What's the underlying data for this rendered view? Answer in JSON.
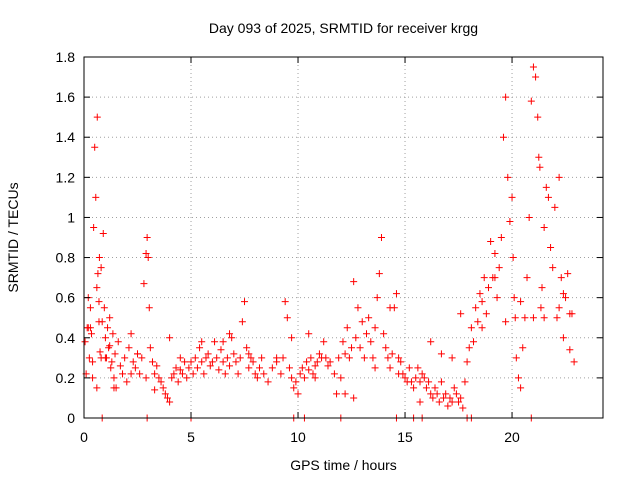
{
  "chart_data": {
    "type": "scatter",
    "title": "Day 093 of 2025, SRMTID for receiver krgg",
    "xlabel": "GPS time / hours",
    "ylabel": "SRMTID / TECUs",
    "xlim": [
      0,
      24.25
    ],
    "ylim": [
      0,
      1.8
    ],
    "x_ticks": [
      0,
      5,
      10,
      15,
      20
    ],
    "x_tick_labels": [
      "0",
      "5",
      "10",
      "15",
      "20"
    ],
    "y_ticks": [
      0,
      0.2,
      0.4,
      0.6,
      0.8,
      1,
      1.2,
      1.4,
      1.6,
      1.8
    ],
    "y_tick_labels": [
      "0",
      "0.2",
      "0.4",
      "0.6",
      "0.8",
      "1",
      "1.2",
      "1.4",
      "1.6",
      "1.8"
    ],
    "grid": true,
    "marker": "plus",
    "colors": {
      "series": "#ff0000",
      "grid": "#a0a0a0",
      "axis": "#000000"
    },
    "series": [
      {
        "name": "SRMTID",
        "x": [
          0.05,
          0.1,
          0.15,
          0.2,
          0.25,
          0.3,
          0.35,
          0.4,
          0.45,
          0.5,
          0.55,
          0.6,
          0.62,
          0.65,
          0.7,
          0.72,
          0.75,
          0.8,
          0.85,
          0.9,
          0.95,
          1.0,
          1.05,
          1.1,
          1.15,
          1.2,
          1.25,
          1.3,
          1.35,
          1.4,
          1.45,
          1.5,
          1.6,
          1.7,
          1.8,
          1.9,
          2.0,
          2.1,
          2.2,
          2.3,
          2.4,
          2.5,
          2.6,
          2.7,
          2.8,
          2.9,
          2.95,
          3.0,
          3.05,
          3.1,
          3.2,
          3.3,
          3.4,
          3.5,
          3.6,
          3.7,
          3.8,
          3.9,
          4.0,
          4.1,
          4.2,
          4.3,
          4.4,
          4.5,
          4.6,
          4.7,
          4.8,
          4.9,
          5.0,
          5.1,
          5.2,
          5.3,
          5.4,
          5.5,
          5.6,
          5.7,
          5.8,
          5.9,
          6.0,
          6.1,
          6.2,
          6.3,
          6.4,
          6.5,
          6.6,
          6.7,
          6.8,
          6.9,
          7.0,
          7.1,
          7.2,
          7.3,
          7.4,
          7.5,
          7.6,
          7.7,
          7.8,
          7.9,
          8.0,
          8.1,
          8.2,
          8.4,
          8.6,
          8.8,
          9.0,
          9.2,
          9.3,
          9.4,
          9.5,
          9.6,
          9.7,
          9.8,
          9.9,
          10.0,
          10.1,
          10.2,
          10.3,
          10.4,
          10.5,
          10.6,
          10.7,
          10.8,
          10.9,
          11.0,
          11.1,
          11.2,
          11.3,
          11.4,
          11.5,
          11.7,
          11.9,
          12.0,
          12.1,
          12.2,
          12.3,
          12.4,
          12.5,
          12.6,
          12.7,
          12.8,
          12.9,
          13.0,
          13.1,
          13.2,
          13.3,
          13.4,
          13.5,
          13.6,
          13.7,
          13.8,
          13.9,
          14.0,
          14.1,
          14.2,
          14.3,
          14.4,
          14.5,
          14.6,
          14.7,
          14.8,
          14.9,
          15.0,
          15.1,
          15.2,
          15.3,
          15.4,
          15.5,
          15.6,
          15.7,
          15.8,
          15.9,
          16.0,
          16.1,
          16.2,
          16.3,
          16.4,
          16.5,
          16.6,
          16.7,
          16.8,
          16.9,
          17.0,
          17.1,
          17.2,
          17.3,
          17.4,
          17.5,
          17.6,
          17.7,
          17.8,
          17.9,
          18.0,
          18.1,
          18.2,
          18.3,
          18.4,
          18.5,
          18.6,
          18.7,
          18.8,
          18.9,
          19.0,
          19.1,
          19.2,
          19.3,
          19.4,
          19.5,
          19.6,
          19.7,
          19.8,
          19.9,
          20.0,
          20.05,
          20.1,
          20.15,
          20.2,
          20.3,
          20.4,
          20.5,
          20.6,
          20.7,
          20.8,
          20.9,
          21.0,
          21.1,
          21.2,
          21.25,
          21.3,
          21.35,
          21.4,
          21.5,
          21.6,
          21.7,
          21.8,
          21.9,
          22.0,
          22.1,
          22.2,
          22.3,
          22.4,
          22.5,
          22.6,
          22.7,
          22.8,
          22.9,
          0.3,
          0.7,
          1.2,
          2.5,
          4.0,
          6.5,
          8.3,
          9.7,
          10.5,
          12.2,
          14.3,
          16.2,
          17.6,
          19.7,
          21.0,
          22.2,
          0.2,
          0.4,
          0.6,
          0.8,
          1.0,
          1.4,
          2.2,
          2.9,
          3.3,
          4.5,
          5.5,
          6.8,
          7.7,
          9.0,
          10.8,
          11.8,
          12.6,
          13.6,
          14.7,
          15.7,
          16.7,
          17.2,
          18.6,
          19.2,
          20.4,
          21.5,
          22.4,
          22.7,
          0.85,
          2.95,
          5.0,
          9.8,
          10.3,
          12.0,
          14.6,
          15.4,
          15.8,
          17.9,
          18.1,
          20.9
        ],
        "y": [
          0.38,
          0.22,
          0.45,
          0.6,
          0.3,
          0.55,
          0.42,
          0.28,
          0.95,
          1.35,
          1.1,
          0.65,
          1.5,
          0.72,
          0.58,
          0.8,
          0.33,
          0.75,
          0.48,
          0.92,
          0.55,
          0.4,
          0.3,
          0.45,
          0.35,
          0.5,
          0.25,
          0.28,
          0.42,
          0.2,
          0.32,
          0.15,
          0.38,
          0.26,
          0.22,
          0.3,
          0.18,
          0.35,
          0.42,
          0.28,
          0.25,
          0.32,
          0.22,
          0.3,
          0.67,
          0.82,
          0.9,
          0.8,
          0.55,
          0.35,
          0.28,
          0.22,
          0.26,
          0.2,
          0.18,
          0.15,
          0.12,
          0.1,
          0.08,
          0.2,
          0.22,
          0.25,
          0.18,
          0.3,
          0.22,
          0.28,
          0.2,
          0.25,
          0.28,
          0.22,
          0.3,
          0.25,
          0.35,
          0.28,
          0.22,
          0.3,
          0.32,
          0.26,
          0.28,
          0.38,
          0.3,
          0.24,
          0.34,
          0.28,
          0.22,
          0.3,
          0.26,
          0.4,
          0.32,
          0.28,
          0.22,
          0.3,
          0.48,
          0.58,
          0.35,
          0.25,
          0.3,
          0.28,
          0.22,
          0.2,
          0.25,
          0.22,
          0.18,
          0.25,
          0.28,
          0.22,
          0.3,
          0.58,
          0.5,
          0.25,
          0.2,
          0.15,
          0.18,
          0.12,
          0.22,
          0.25,
          0.2,
          0.28,
          0.24,
          0.3,
          0.22,
          0.26,
          0.28,
          0.32,
          0.3,
          0.38,
          0.3,
          0.26,
          0.28,
          0.22,
          0.3,
          0.2,
          0.38,
          0.32,
          0.45,
          0.3,
          0.35,
          0.68,
          0.4,
          0.55,
          0.35,
          0.48,
          0.3,
          0.42,
          0.5,
          0.38,
          0.3,
          0.45,
          0.6,
          0.72,
          0.9,
          0.42,
          0.35,
          0.3,
          0.25,
          0.32,
          0.55,
          0.62,
          0.3,
          0.28,
          0.22,
          0.2,
          0.18,
          0.25,
          0.18,
          0.15,
          0.2,
          0.25,
          0.18,
          0.22,
          0.2,
          0.15,
          0.18,
          0.12,
          0.1,
          0.15,
          0.12,
          0.08,
          0.18,
          0.1,
          0.12,
          0.06,
          0.1,
          0.08,
          0.15,
          0.12,
          0.08,
          0.1,
          0.05,
          0.18,
          0.28,
          0.35,
          0.45,
          0.38,
          0.55,
          0.48,
          0.62,
          0.58,
          0.7,
          0.52,
          0.65,
          0.88,
          0.7,
          0.82,
          0.6,
          0.75,
          0.9,
          1.4,
          1.6,
          1.2,
          0.98,
          1.1,
          0.8,
          0.6,
          0.5,
          0.3,
          0.2,
          0.15,
          0.35,
          0.5,
          0.7,
          1.0,
          1.58,
          1.75,
          1.7,
          1.5,
          1.3,
          1.25,
          0.55,
          0.65,
          0.95,
          1.15,
          1.1,
          0.85,
          0.75,
          1.05,
          0.5,
          1.2,
          0.7,
          0.4,
          0.6,
          0.72,
          0.34,
          0.52,
          0.28,
          0.45,
          0.48,
          0.36,
          0.32,
          0.4,
          0.38,
          0.3,
          0.4,
          0.42,
          0.12,
          0.55,
          0.38,
          0.52,
          0.48,
          0.5,
          0.55,
          0.45,
          0.2,
          0.15,
          0.3,
          0.3,
          0.15,
          0.22,
          0.2,
          0.14,
          0.24,
          0.38,
          0.42,
          0.32,
          0.3,
          0.2,
          0.12,
          0.1,
          0.25,
          0.22,
          0.08,
          0.32,
          0.3,
          0.45,
          0.7,
          0.58,
          0.5,
          0.62,
          0.52,
          0.0,
          0.0,
          0.0,
          0.0,
          0.0,
          0.0,
          0.0,
          0.0,
          0.0,
          0.0,
          0.0,
          0.0
        ]
      }
    ]
  }
}
